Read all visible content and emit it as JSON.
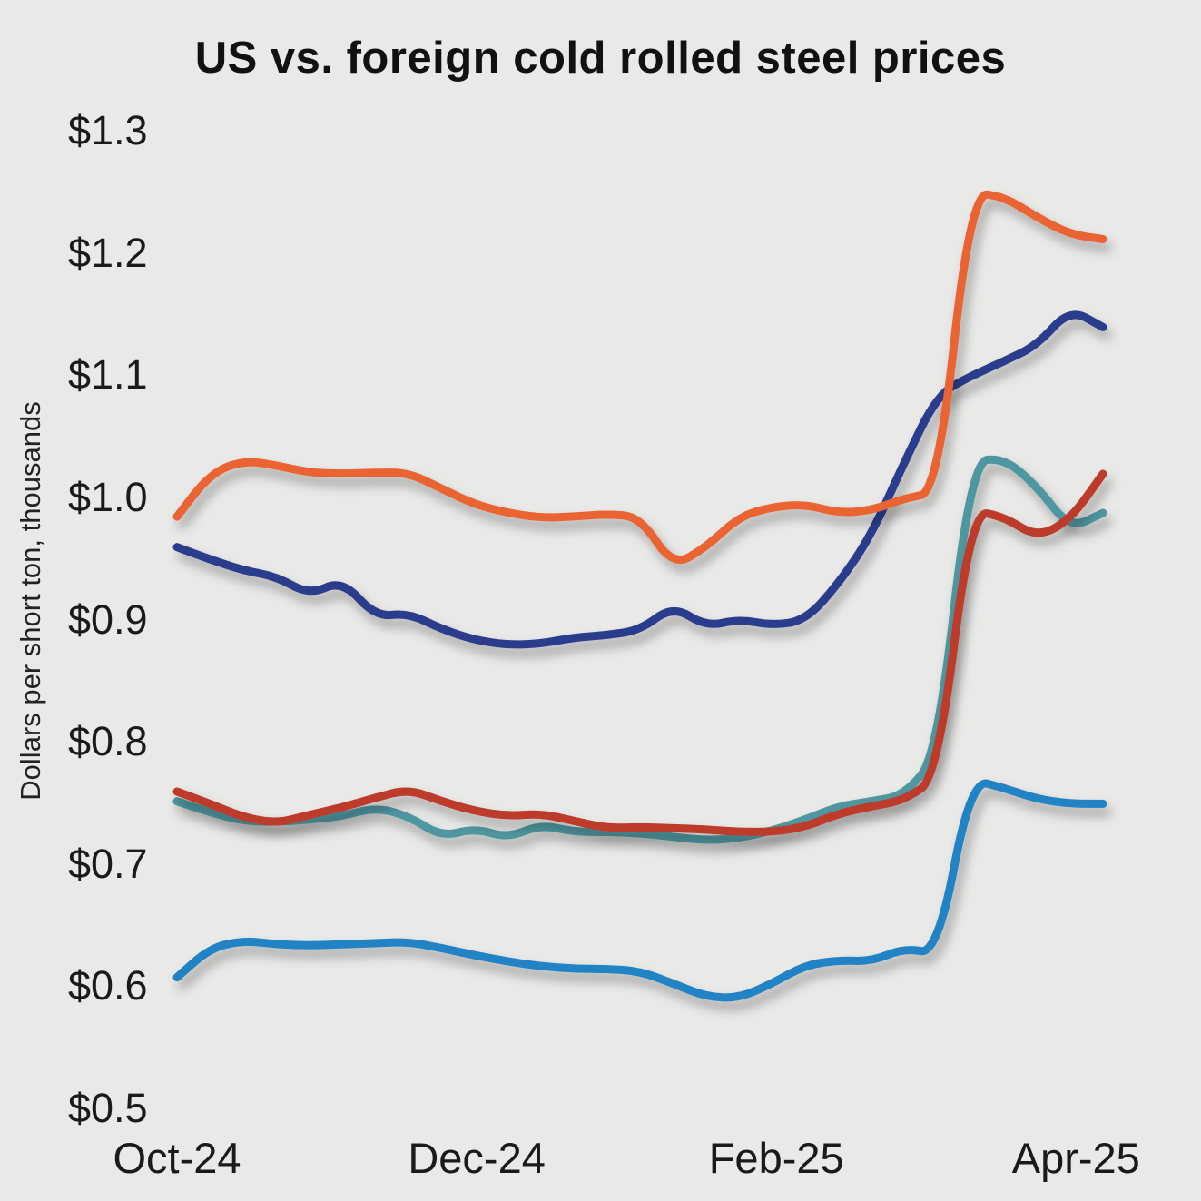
{
  "title": "US vs. foreign cold rolled steel prices",
  "colors": {
    "background": "#e9e9e8",
    "text": "#1a1a1a"
  },
  "chart_data": {
    "type": "line",
    "title": "US vs. foreign cold rolled steel prices",
    "xlabel": "",
    "ylabel": "Dollars per short ton, thousands",
    "ylim": [
      0.5,
      1.3
    ],
    "yticks": [
      "$1.3",
      "$1.2",
      "$1.1",
      "$1.0",
      "$0.9",
      "$0.8",
      "$0.7",
      "$0.6",
      "$0.5"
    ],
    "ytick_values": [
      1.3,
      1.2,
      1.1,
      1.0,
      0.9,
      0.8,
      0.7,
      0.6,
      0.5
    ],
    "xticks": [
      "Oct-24",
      "Dec-24",
      "Feb-25",
      "Apr-25"
    ],
    "xtick_months": [
      0,
      2,
      4,
      6
    ],
    "x_range_months": [
      0,
      6.18
    ],
    "grid": false,
    "legend": "none",
    "units": "Dollars per short ton, thousands",
    "series": [
      {
        "name": "navy-line",
        "color": "#2b3d8d",
        "values": [
          0.96,
          0.95,
          0.941,
          0.936,
          0.921,
          0.933,
          0.903,
          0.906,
          0.893,
          0.884,
          0.88,
          0.881,
          0.886,
          0.888,
          0.892,
          0.912,
          0.895,
          0.901,
          0.896,
          0.9,
          0.93,
          0.97,
          1.03,
          1.085,
          1.1,
          1.112,
          1.125,
          1.155,
          1.14
        ]
      },
      {
        "name": "orange-line",
        "color": "#ea6430",
        "values": [
          0.985,
          1.02,
          1.031,
          1.027,
          1.021,
          1.02,
          1.021,
          1.021,
          1.008,
          0.995,
          0.988,
          0.984,
          0.985,
          0.987,
          0.985,
          0.944,
          0.96,
          0.985,
          0.993,
          0.995,
          0.988,
          0.99,
          1.0,
          1.005,
          1.25,
          1.247,
          1.23,
          1.216,
          1.212
        ]
      },
      {
        "name": "teal-line",
        "color": "#4f97a0",
        "values": [
          0.752,
          0.743,
          0.736,
          0.735,
          0.737,
          0.74,
          0.747,
          0.74,
          0.723,
          0.73,
          0.722,
          0.733,
          0.727,
          0.727,
          0.726,
          0.723,
          0.72,
          0.722,
          0.728,
          0.737,
          0.748,
          0.752,
          0.757,
          0.79,
          1.03,
          1.033,
          1.01,
          0.975,
          0.988
        ]
      },
      {
        "name": "red-line",
        "color": "#bd3a2a",
        "values": [
          0.76,
          0.75,
          0.739,
          0.734,
          0.741,
          0.747,
          0.755,
          0.762,
          0.752,
          0.744,
          0.74,
          0.742,
          0.736,
          0.73,
          0.731,
          0.73,
          0.729,
          0.727,
          0.727,
          0.731,
          0.742,
          0.748,
          0.753,
          0.772,
          0.99,
          0.985,
          0.968,
          0.982,
          1.02
        ]
      },
      {
        "name": "blue-line",
        "color": "#2083c4",
        "values": [
          0.608,
          0.632,
          0.638,
          0.635,
          0.634,
          0.635,
          0.636,
          0.637,
          0.632,
          0.626,
          0.621,
          0.617,
          0.615,
          0.615,
          0.613,
          0.603,
          0.592,
          0.591,
          0.603,
          0.618,
          0.622,
          0.621,
          0.632,
          0.627,
          0.77,
          0.763,
          0.754,
          0.75,
          0.75
        ]
      }
    ]
  }
}
